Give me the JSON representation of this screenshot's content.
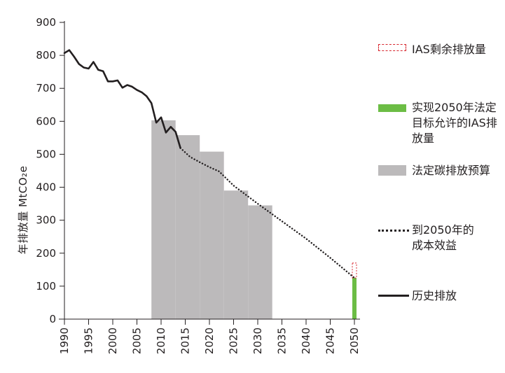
{
  "chart_data": {
    "type": "line",
    "ylabel": "年排放量 MtCO₂e",
    "xlabel": "",
    "ylim": [
      0,
      900
    ],
    "xlim": [
      1990,
      2050
    ],
    "y_ticks": [
      0,
      100,
      200,
      300,
      400,
      500,
      600,
      700,
      800,
      900
    ],
    "x_ticks": [
      1990,
      1995,
      2000,
      2005,
      2010,
      2015,
      2020,
      2025,
      2030,
      2035,
      2040,
      2045,
      2050
    ],
    "series": [
      {
        "name": "历史排放",
        "style": "solid",
        "color": "#231f20",
        "x": [
          1990,
          1991,
          1992,
          1993,
          1994,
          1995,
          1996,
          1997,
          1998,
          1999,
          2000,
          2001,
          2002,
          2003,
          2004,
          2005,
          2006,
          2007,
          2008,
          2009,
          2010,
          2011,
          2012,
          2013,
          2014
        ],
        "y": [
          807,
          816,
          796,
          774,
          763,
          760,
          780,
          756,
          752,
          721,
          721,
          724,
          702,
          710,
          705,
          695,
          688,
          676,
          655,
          596,
          612,
          566,
          583,
          568,
          519
        ]
      },
      {
        "name": "到2050年的成本效益",
        "style": "dotted",
        "color": "#231f20",
        "x": [
          2014,
          2016,
          2018,
          2020,
          2022,
          2025,
          2030,
          2035,
          2040,
          2045,
          2050
        ],
        "y": [
          519,
          492,
          476,
          461,
          448,
          405,
          350,
          297,
          244,
          186,
          125
        ]
      }
    ],
    "budget_periods": {
      "name": "法定碳排放预算",
      "color": "#bcbabb",
      "periods": [
        {
          "start": 2008,
          "end": 2013,
          "value": 603
        },
        {
          "start": 2013,
          "end": 2018,
          "value": 558
        },
        {
          "start": 2018,
          "end": 2023,
          "value": 508
        },
        {
          "start": 2023,
          "end": 2028,
          "value": 390
        },
        {
          "start": 2028,
          "end": 2033,
          "value": 345
        }
      ]
    },
    "target_2050": {
      "name": "实现2050年法定目标允许的IAS排放量",
      "x": 2050,
      "value": 125,
      "color": "#6cbd45"
    },
    "ias_2050": {
      "name": "IAS剩余排放量",
      "x": 2050,
      "from": 125,
      "to": 170,
      "color": "#d7242c"
    },
    "legend": [
      {
        "key": "ias",
        "label": "IAS剩余排放量"
      },
      {
        "key": "target",
        "label": "实现2050年法定目标允许的IAS排放量"
      },
      {
        "key": "budget",
        "label": "法定碳排放预算"
      },
      {
        "key": "costeff",
        "label": "到2050年的成本效益"
      },
      {
        "key": "history",
        "label": "历史排放"
      }
    ],
    "legend_position": "right",
    "grid": false
  }
}
